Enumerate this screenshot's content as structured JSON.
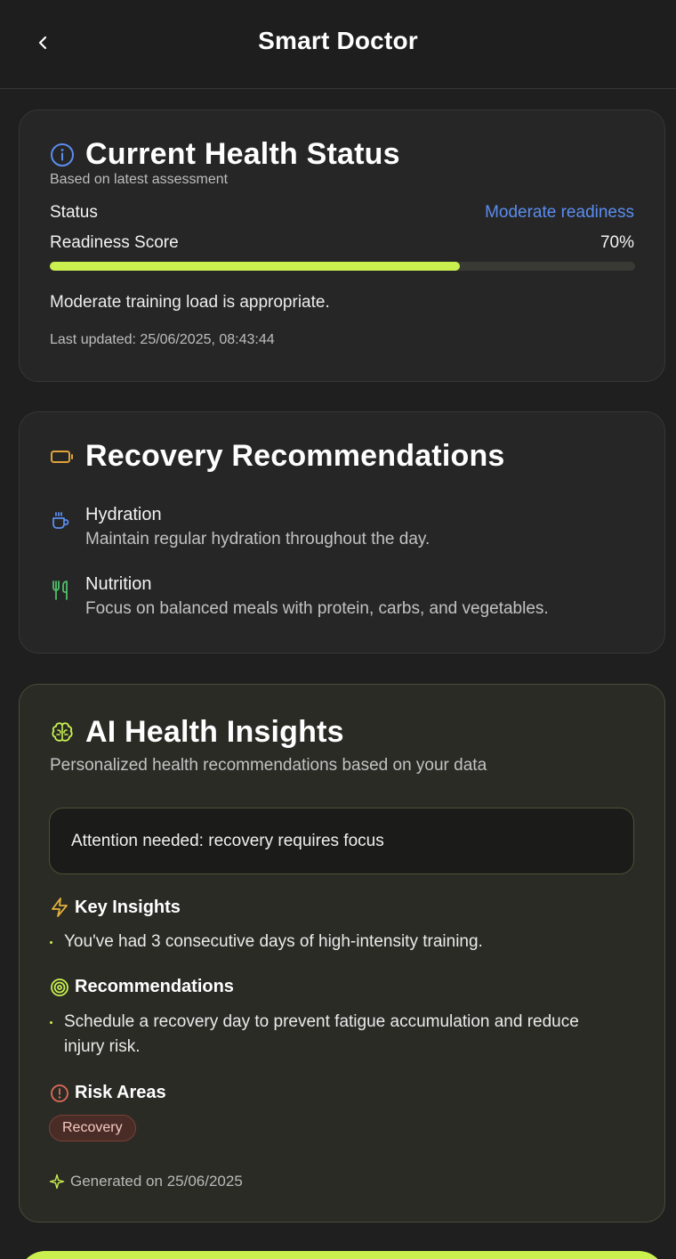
{
  "header": {
    "title": "Smart Doctor"
  },
  "health_status": {
    "title": "Current Health Status",
    "subtitle": "Based on latest assessment",
    "status_label": "Status",
    "status_value": "Moderate readiness",
    "readiness_label": "Readiness Score",
    "readiness_value": "70%",
    "readiness_fraction": 0.7,
    "message": "Moderate training load is appropriate.",
    "last_updated": "Last updated: 25/06/2025, 08:43:44",
    "colors": {
      "accent_blue": "#5b8def",
      "progress": "#c9f04f"
    }
  },
  "recovery": {
    "title": "Recovery Recommendations",
    "items": [
      {
        "title": "Hydration",
        "description": "Maintain regular hydration throughout the day.",
        "icon": "cup-icon"
      },
      {
        "title": "Nutrition",
        "description": "Focus on balanced meals with protein, carbs, and vegetables.",
        "icon": "utensils-icon"
      }
    ]
  },
  "ai_insights": {
    "title": "AI Health Insights",
    "subtitle": "Personalized health recommendations based on your data",
    "alert": "Attention needed: recovery requires focus",
    "key_insights_label": "Key Insights",
    "key_insights": [
      "You've had 3 consecutive days of high-intensity training."
    ],
    "recommendations_label": "Recommendations",
    "recommendations": [
      "Schedule a recovery day to prevent fatigue accumulation and reduce injury risk."
    ],
    "risk_areas_label": "Risk Areas",
    "risk_areas": [
      "Recovery"
    ],
    "generated": "Generated on 25/06/2025"
  }
}
